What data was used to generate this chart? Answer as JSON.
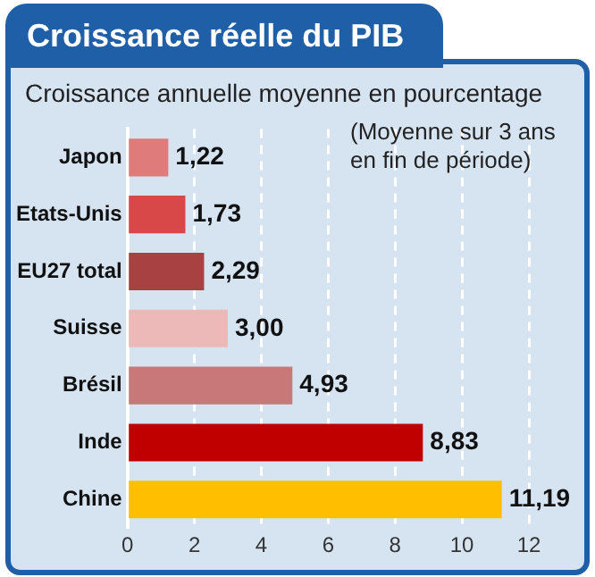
{
  "chart_data": {
    "type": "bar",
    "orientation": "horizontal",
    "title": "Croissance réelle du PIB",
    "subtitle": "Croissance annuelle moyenne en pourcentage",
    "annotations": [
      "(Moyenne sur 3 ans en fin de période)"
    ],
    "categories": [
      "Japon",
      "Etats-Unis",
      "EU27 total",
      "Suisse",
      "Brésil",
      "Inde",
      "Chine"
    ],
    "values": [
      1.22,
      1.73,
      2.29,
      3.0,
      4.93,
      8.83,
      11.19
    ],
    "value_labels": [
      "1,22",
      "1,73",
      "2,29",
      "3,00",
      "4,93",
      "8,83",
      "11,19"
    ],
    "colors": [
      "#e07b7b",
      "#d84848",
      "#a84242",
      "#ecb8b8",
      "#c87878",
      "#c00000",
      "#ffbe00"
    ],
    "xlim": [
      0,
      12
    ],
    "xticks": [
      0,
      2,
      4,
      6,
      8,
      10,
      12
    ],
    "grid": "x",
    "legend": false
  }
}
